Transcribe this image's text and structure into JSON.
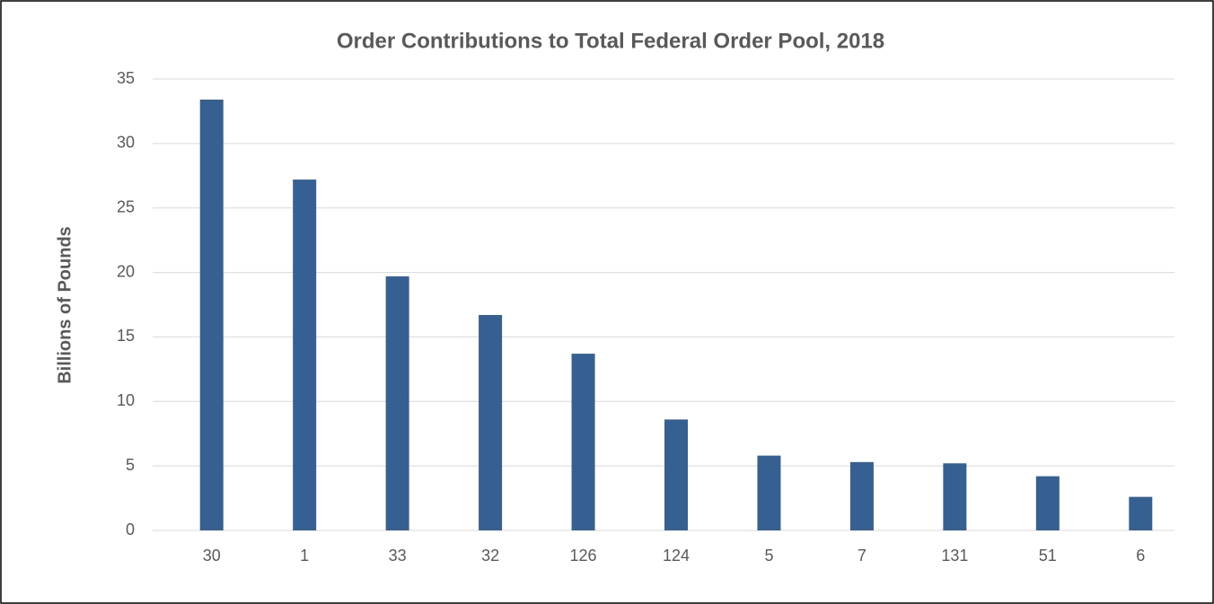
{
  "chart_data": {
    "type": "bar",
    "title": "Order Contributions to Total Federal Order Pool, 2018",
    "y_label": "Billions of Pounds",
    "categories": [
      "30",
      "1",
      "33",
      "32",
      "126",
      "124",
      "5",
      "7",
      "131",
      "51",
      "6"
    ],
    "values": [
      33.4,
      27.2,
      19.7,
      16.7,
      13.7,
      8.6,
      5.8,
      5.3,
      5.2,
      4.2,
      2.6
    ],
    "color": "#376092",
    "ylim": [
      0,
      35
    ],
    "yticks": [
      0,
      5,
      10,
      15,
      20,
      25,
      30,
      35
    ],
    "grid": true
  }
}
